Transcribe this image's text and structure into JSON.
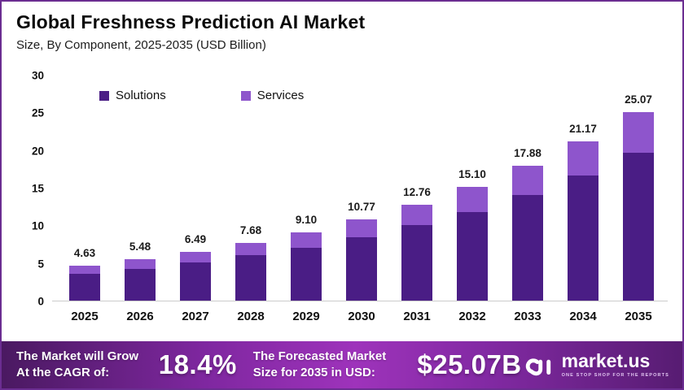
{
  "header": {
    "title": "Global Freshness Prediction AI Market",
    "subtitle": "Size, By Component, 2025-2035 (USD Billion)"
  },
  "chart_data": {
    "type": "bar",
    "subtype": "stacked",
    "title": "Global Freshness Prediction AI Market",
    "subtitle": "Size, By Component, 2025-2035 (USD Billion)",
    "unit": "USD Billion",
    "categories": [
      "2025",
      "2026",
      "2027",
      "2028",
      "2029",
      "2030",
      "2031",
      "2032",
      "2033",
      "2034",
      "2035"
    ],
    "series": [
      {
        "name": "Solutions",
        "color": "#4a1d85",
        "values": [
          3.6,
          4.2,
          5.05,
          6.0,
          7.05,
          8.4,
          10.0,
          11.8,
          14.05,
          16.65,
          19.6
        ]
      },
      {
        "name": "Services",
        "color": "#8e55cc",
        "values": [
          1.03,
          1.28,
          1.44,
          1.68,
          2.05,
          2.37,
          2.76,
          3.3,
          3.83,
          4.52,
          5.47
        ]
      }
    ],
    "totals": [
      4.63,
      5.48,
      6.49,
      7.68,
      9.1,
      10.77,
      12.76,
      15.1,
      17.88,
      21.17,
      25.07
    ],
    "total_labels": [
      "4.63",
      "5.48",
      "6.49",
      "7.68",
      "9.10",
      "10.77",
      "12.76",
      "15.10",
      "17.88",
      "21.17",
      "25.07"
    ],
    "y_ticks": [
      "0",
      "5",
      "10",
      "15",
      "20",
      "25",
      "30"
    ],
    "ylim": [
      0,
      30
    ],
    "grid": false,
    "legend_position": "inside-top-left",
    "axis_line_color": "#cccccc"
  },
  "banner": {
    "cagr_label_line1": "The Market will Grow",
    "cagr_label_line2": "At the CAGR of:",
    "cagr_value": "18.4%",
    "forecast_label_line1": "The Forecasted Market",
    "forecast_label_line2": "Size for 2035 in USD:",
    "forecast_value": "$25.07B",
    "brand": {
      "name": "market.us",
      "tagline": "ONE STOP SHOP FOR THE REPORTS"
    }
  }
}
